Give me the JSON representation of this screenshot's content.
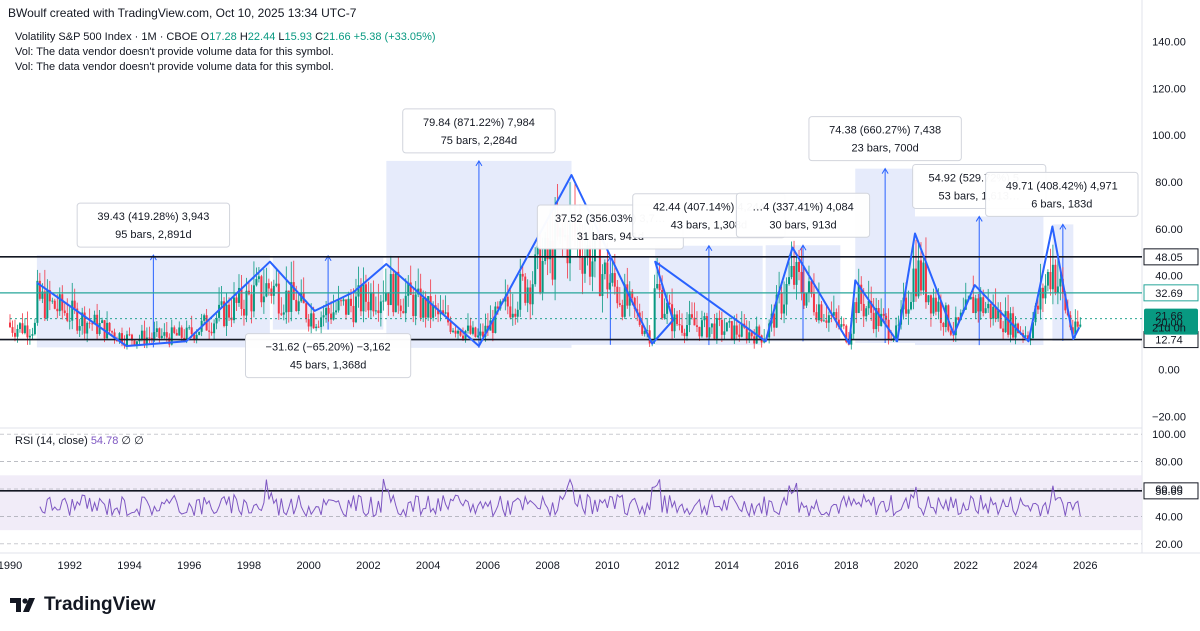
{
  "header": {
    "text": "BWoulf created with TradingView.com, Oct 10, 2025 13:34 UTC-7"
  },
  "legend": {
    "symbol": "Volatility S&P 500 Index · 1M · CBOE",
    "ohlc": [
      {
        "k": "O",
        "v": "17.28"
      },
      {
        "k": "H",
        "v": "22.44"
      },
      {
        "k": "L",
        "v": "15.93"
      },
      {
        "k": "C",
        "v": "21.66"
      }
    ],
    "change": "+5.38 (+33.05%)",
    "vol1": "Vol: The data vendor doesn't provide volume data for this symbol.",
    "vol2": "Vol: The data vendor doesn't provide volume data for this symbol."
  },
  "rsi_legend": {
    "label": "RSI (14, close)",
    "value": "54.78",
    "extra1": "∅",
    "extra2": "∅"
  },
  "logo": {
    "text": "TradingView"
  },
  "colors": {
    "blue": "#2962ff",
    "zone": "#c7d3f7",
    "teal": "#26a69a",
    "rsi": "#7e57c2",
    "up": "#089981",
    "down": "#f23645"
  },
  "chart_data": {
    "type": "line",
    "symbol": "Volatility S&P 500 Index",
    "interval": "1M",
    "x_axis_ticks": [
      "1990",
      "1992",
      "1994",
      "1996",
      "1998",
      "2000",
      "2002",
      "2004",
      "2006",
      "2008",
      "2010",
      "2012",
      "2014",
      "2016",
      "2018",
      "2020",
      "2022",
      "2024",
      "2026"
    ],
    "price_axis_ticks": [
      "140.00",
      "120.00",
      "100.00",
      "80.00",
      "60.00",
      "40.00",
      "20.00",
      "0.00",
      "−20.00"
    ],
    "price_range": [
      -25,
      150
    ],
    "horizontal_levels": [
      {
        "value": 48.05,
        "label": "48.05",
        "color": "#131722"
      },
      {
        "value": 32.69,
        "label": "32.69",
        "color": "#26a69a"
      },
      {
        "value": 12.74,
        "label": "12.74",
        "color": "#131722"
      }
    ],
    "last_price": {
      "value": 21.66,
      "label": "21.66",
      "countdown": "21d 0h"
    },
    "zigzag": [
      {
        "x": 1990.9,
        "y": 37
      },
      {
        "x": 1993.9,
        "y": 10
      },
      {
        "x": 1995.9,
        "y": 12
      },
      {
        "x": 1998.7,
        "y": 46
      },
      {
        "x": 2000.2,
        "y": 25
      },
      {
        "x": 2001.5,
        "y": 33
      },
      {
        "x": 2002.6,
        "y": 45
      },
      {
        "x": 2005.7,
        "y": 10
      },
      {
        "x": 2008.8,
        "y": 83
      },
      {
        "x": 2011.5,
        "y": 11
      },
      {
        "x": 2012.2,
        "y": 21
      },
      {
        "x": 2011.6,
        "y": 46
      },
      {
        "x": 2015.3,
        "y": 12
      },
      {
        "x": 2015.7,
        "y": 31
      },
      {
        "x": 2016.2,
        "y": 52
      },
      {
        "x": 2018.1,
        "y": 11
      },
      {
        "x": 2018.3,
        "y": 38
      },
      {
        "x": 2019.7,
        "y": 12
      },
      {
        "x": 2020.3,
        "y": 58
      },
      {
        "x": 2021.6,
        "y": 15
      },
      {
        "x": 2022.3,
        "y": 36
      },
      {
        "x": 2024.1,
        "y": 12
      },
      {
        "x": 2024.9,
        "y": 61
      },
      {
        "x": 2025.6,
        "y": 13
      },
      {
        "x": 2025.8,
        "y": 18
      }
    ],
    "measurements": [
      {
        "line1": "39.43 (419.28%) 3,943",
        "line2": "95 bars, 2,891d",
        "x_start": 1990.9,
        "x_end": 1998.7,
        "y_low": 9.4,
        "y_high": 48.8
      },
      {
        "line1": "−31.62 (−65.20%) −3,162",
        "line2": "45 bars, 1,368d",
        "x_start": 1998.8,
        "x_end": 2002.5,
        "y_low": 17,
        "y_high": 48.5
      },
      {
        "line1": "79.84 (871.22%) 7,984",
        "line2": "75 bars, 2,284d",
        "x_start": 2002.6,
        "x_end": 2008.8,
        "y_low": 9.2,
        "y_high": 89
      },
      {
        "line1": "37.52 (356.03%) 3,7…",
        "line2": "31 bars, 941d",
        "x_start": 2008.8,
        "x_end": 2011.4,
        "y_low": 10.5,
        "y_high": 48
      },
      {
        "line1": "42.44 (407.14%) 4,244",
        "line2": "43 bars, 1,308d",
        "x_start": 2011.6,
        "x_end": 2015.2,
        "y_low": 10.4,
        "y_high": 52.8
      },
      {
        "line1": "…4 (337.41%) 4,084",
        "line2": "30 bars, 913d",
        "x_start": 2015.3,
        "x_end": 2017.8,
        "y_low": 12,
        "y_high": 53
      },
      {
        "line1": "74.38 (660.27%) 7,438",
        "line2": "23 bars, 700d",
        "x_start": 2018.3,
        "x_end": 2020.3,
        "y_low": 11.3,
        "y_high": 85.7
      },
      {
        "line1": "54.92 (529.72%) 5…",
        "line2": "53 bars, 1,613…",
        "x_start": 2020.3,
        "x_end": 2024.6,
        "y_low": 10.4,
        "y_high": 65.3
      },
      {
        "line1": "49.71 (408.42%) 4,971",
        "line2": "6 bars, 183d",
        "x_start": 2024.9,
        "x_end": 2025.6,
        "y_low": 12.2,
        "y_high": 61.9
      }
    ],
    "rsi": {
      "label": "RSI (14, close)",
      "value": 54.78,
      "levels": [
        100,
        80,
        60,
        40,
        20
      ],
      "level_line": {
        "value": 58.65,
        "label": "58.65"
      },
      "y_axis_ticks": [
        "100.00",
        "80.00",
        "60.00",
        "40.00",
        "20.00"
      ],
      "y_range": [
        17,
        103
      ]
    }
  }
}
